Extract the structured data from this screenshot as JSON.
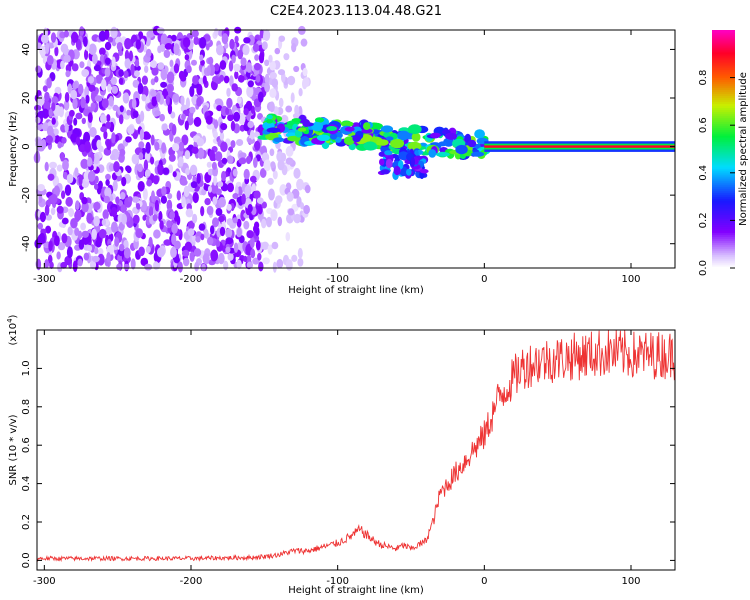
{
  "title": "C2E4.2023.113.04.48.G21",
  "chart_data": [
    {
      "type": "heatmap",
      "xlabel": "Height of straight line (km)",
      "ylabel": "Frequency (Hz)",
      "xlim": [
        -305,
        130
      ],
      "ylim": [
        -50,
        48
      ],
      "x_ticks": [
        -300,
        -200,
        -100,
        0,
        100
      ],
      "x_tick_labels": [
        "-300",
        "-200",
        "-100",
        "0",
        "100"
      ],
      "y_ticks": [
        -40,
        -20,
        0,
        20,
        40
      ],
      "y_tick_labels": [
        "-40",
        "-20",
        "0",
        "20",
        "40"
      ],
      "colorbar": {
        "label": "Normalized spectral amplitude",
        "range": [
          0,
          1
        ],
        "ticks": [
          0.0,
          0.2,
          0.4,
          0.6,
          0.8
        ],
        "tick_labels": [
          "0.0",
          "0.2",
          "0.4",
          "0.6",
          "0.8"
        ],
        "colormap": "rainbow (white-purple-blue-cyan-green-yellow-red-magenta)"
      },
      "features": [
        {
          "region": "noise",
          "x_range": [
            -305,
            -150
          ],
          "y_range": [
            -50,
            48
          ],
          "amplitude": 0.1
        },
        {
          "region": "diffuse",
          "x_range": [
            -150,
            -120
          ],
          "y_range": [
            -50,
            48
          ],
          "amplitude": 0.05
        },
        {
          "region": "descending trace",
          "x_start": -150,
          "x_end": 0,
          "y_start": 8,
          "y_end": 0,
          "amplitude": 0.5
        },
        {
          "region": "spread",
          "x_range": [
            -70,
            -40
          ],
          "y_range": [
            -12,
            -2
          ],
          "amplitude": 0.3
        },
        {
          "region": "stable line",
          "x_range": [
            0,
            130
          ],
          "y": 0,
          "amplitude": 0.9
        }
      ]
    },
    {
      "type": "line",
      "xlabel": "Height of straight line (km)",
      "ylabel": "SNR (10 * v/v)",
      "y_multiplier": "(x10",
      "y_multiplier_exp": "4",
      "xlim": [
        -305,
        130
      ],
      "ylim": [
        -0.05,
        1.2
      ],
      "x_ticks": [
        -300,
        -200,
        -100,
        0,
        100
      ],
      "x_tick_labels": [
        "-300",
        "-200",
        "-100",
        "0",
        "100"
      ],
      "y_ticks": [
        0.0,
        0.2,
        0.4,
        0.6,
        0.8,
        1.0
      ],
      "y_tick_labels": [
        "0.0",
        "0.2",
        "0.4",
        "0.6",
        "0.8",
        "1.0"
      ],
      "series": [
        {
          "color": "#ee3333",
          "x": [
            -305,
            -250,
            -200,
            -160,
            -150,
            -140,
            -130,
            -120,
            -110,
            -100,
            -95,
            -90,
            -85,
            -80,
            -75,
            -70,
            -65,
            -60,
            -55,
            -50,
            -45,
            -40,
            -35,
            -30,
            -25,
            -20,
            -15,
            -10,
            -5,
            0,
            5,
            10,
            15,
            20,
            25,
            30,
            40,
            50,
            60,
            70,
            80,
            90,
            100,
            110,
            120,
            130
          ],
          "y": [
            0.01,
            0.01,
            0.01,
            0.015,
            0.02,
            0.03,
            0.05,
            0.05,
            0.07,
            0.09,
            0.11,
            0.13,
            0.16,
            0.13,
            0.1,
            0.08,
            0.07,
            0.06,
            0.08,
            0.06,
            0.08,
            0.1,
            0.2,
            0.35,
            0.4,
            0.45,
            0.5,
            0.55,
            0.6,
            0.65,
            0.75,
            0.85,
            0.9,
            0.95,
            1.0,
            1.02,
            1.04,
            1.05,
            1.06,
            1.07,
            1.08,
            1.08,
            1.07,
            1.07,
            1.07,
            1.07
          ]
        }
      ]
    }
  ]
}
